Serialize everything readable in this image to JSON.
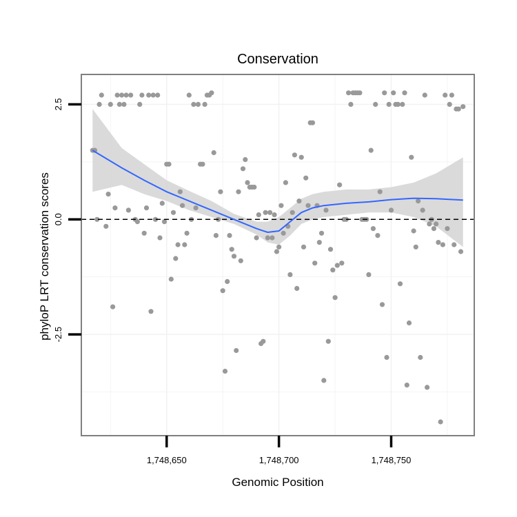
{
  "chart_data": {
    "type": "scatter",
    "title": "Conservation",
    "xlabel": "Genomic Position",
    "ylabel": "phyloP LRT conservation scores",
    "xlim": [
      1748612,
      1748787
    ],
    "ylim": [
      -4.7,
      3.15
    ],
    "x_ticks": [
      1748650,
      1748700,
      1748750
    ],
    "x_tick_labels": [
      "1,748,650",
      "1,748,700",
      "1,748,750"
    ],
    "y_ticks": [
      -2.5,
      0.0,
      2.5
    ],
    "y_tick_labels": [
      "-2.5",
      "0.0",
      "2.5"
    ],
    "grid": true,
    "reference_line": {
      "y": 0,
      "style": "dashed"
    },
    "colors": {
      "points": "#999999",
      "smooth": "#3366ff",
      "band": "#d3d3d3",
      "panel_border": "#7f7f7f",
      "grid": "#f2f2f2"
    },
    "points": [
      [
        1748617,
        1.5
      ],
      [
        1748618,
        1.5
      ],
      [
        1748619,
        0.0
      ],
      [
        1748620,
        2.5
      ],
      [
        1748621,
        2.7
      ],
      [
        1748623,
        -0.15
      ],
      [
        1748624,
        0.55
      ],
      [
        1748625,
        2.5
      ],
      [
        1748626,
        -1.9
      ],
      [
        1748627,
        0.25
      ],
      [
        1748628,
        2.7
      ],
      [
        1748629,
        2.5
      ],
      [
        1748630,
        2.7
      ],
      [
        1748631,
        2.5
      ],
      [
        1748632,
        2.7
      ],
      [
        1748633,
        0.2
      ],
      [
        1748634,
        2.7
      ],
      [
        1748636,
        0.0
      ],
      [
        1748637,
        -0.05
      ],
      [
        1748638,
        2.5
      ],
      [
        1748639,
        2.7
      ],
      [
        1748640,
        -0.3
      ],
      [
        1748641,
        0.25
      ],
      [
        1748642,
        2.7
      ],
      [
        1748643,
        -2.0
      ],
      [
        1748644,
        2.7
      ],
      [
        1748645,
        0.0
      ],
      [
        1748646,
        2.7
      ],
      [
        1748647,
        -0.4
      ],
      [
        1748648,
        0.35
      ],
      [
        1748649,
        -0.05
      ],
      [
        1748650,
        1.2
      ],
      [
        1748651,
        1.2
      ],
      [
        1748652,
        -1.3
      ],
      [
        1748653,
        0.15
      ],
      [
        1748654,
        -0.85
      ],
      [
        1748655,
        -0.55
      ],
      [
        1748656,
        0.6
      ],
      [
        1748657,
        0.3
      ],
      [
        1748658,
        -0.55
      ],
      [
        1748659,
        -0.3
      ],
      [
        1748660,
        2.7
      ],
      [
        1748661,
        0.0
      ],
      [
        1748662,
        2.5
      ],
      [
        1748663,
        0.25
      ],
      [
        1748664,
        2.5
      ],
      [
        1748665,
        1.2
      ],
      [
        1748666,
        1.2
      ],
      [
        1748667,
        2.5
      ],
      [
        1748668,
        2.7
      ],
      [
        1748669,
        2.7
      ],
      [
        1748670,
        2.75
      ],
      [
        1748671,
        1.45
      ],
      [
        1748672,
        -0.35
      ],
      [
        1748673,
        0.0
      ],
      [
        1748674,
        0.6
      ],
      [
        1748675,
        -1.55
      ],
      [
        1748676,
        -3.3
      ],
      [
        1748677,
        -1.35
      ],
      [
        1748678,
        -0.35
      ],
      [
        1748679,
        -0.65
      ],
      [
        1748680,
        -0.8
      ],
      [
        1748681,
        -2.85
      ],
      [
        1748682,
        0.6
      ],
      [
        1748683,
        -0.9
      ],
      [
        1748684,
        1.1
      ],
      [
        1748685,
        1.3
      ],
      [
        1748686,
        0.8
      ],
      [
        1748687,
        0.7
      ],
      [
        1748688,
        0.7
      ],
      [
        1748689,
        0.7
      ],
      [
        1748690,
        -0.4
      ],
      [
        1748691,
        0.1
      ],
      [
        1748692,
        -2.7
      ],
      [
        1748693,
        -2.65
      ],
      [
        1748694,
        0.15
      ],
      [
        1748695,
        -0.4
      ],
      [
        1748696,
        0.15
      ],
      [
        1748697,
        -0.4
      ],
      [
        1748698,
        0.1
      ],
      [
        1748699,
        -0.7
      ],
      [
        1748700,
        -0.6
      ],
      [
        1748701,
        0.3
      ],
      [
        1748702,
        -0.3
      ],
      [
        1748703,
        0.8
      ],
      [
        1748704,
        -0.15
      ],
      [
        1748705,
        -1.2
      ],
      [
        1748706,
        0.15
      ],
      [
        1748707,
        1.4
      ],
      [
        1748708,
        -1.5
      ],
      [
        1748709,
        0.4
      ],
      [
        1748710,
        1.35
      ],
      [
        1748711,
        -0.6
      ],
      [
        1748712,
        0.9
      ],
      [
        1748713,
        0.3
      ],
      [
        1748714,
        2.1
      ],
      [
        1748715,
        2.1
      ],
      [
        1748716,
        -0.95
      ],
      [
        1748717,
        0.3
      ],
      [
        1748718,
        -0.5
      ],
      [
        1748719,
        -0.3
      ],
      [
        1748720,
        -3.5
      ],
      [
        1748721,
        0.2
      ],
      [
        1748722,
        -2.65
      ],
      [
        1748723,
        -0.65
      ],
      [
        1748724,
        -1.1
      ],
      [
        1748725,
        -1.7
      ],
      [
        1748726,
        -1.0
      ],
      [
        1748727,
        0.75
      ],
      [
        1748728,
        -0.95
      ],
      [
        1748729,
        0.0
      ],
      [
        1748730,
        0.0
      ],
      [
        1748731,
        2.75
      ],
      [
        1748732,
        2.5
      ],
      [
        1748733,
        2.75
      ],
      [
        1748734,
        2.75
      ],
      [
        1748735,
        2.75
      ],
      [
        1748736,
        2.75
      ],
      [
        1748737,
        0.0
      ],
      [
        1748738,
        0.0
      ],
      [
        1748739,
        0.0
      ],
      [
        1748740,
        -1.2
      ],
      [
        1748741,
        1.5
      ],
      [
        1748742,
        -0.2
      ],
      [
        1748743,
        2.5
      ],
      [
        1748744,
        -0.35
      ],
      [
        1748745,
        0.6
      ],
      [
        1748746,
        -1.85
      ],
      [
        1748747,
        2.75
      ],
      [
        1748748,
        -3.0
      ],
      [
        1748749,
        2.5
      ],
      [
        1748750,
        0.2
      ],
      [
        1748751,
        2.75
      ],
      [
        1748752,
        2.5
      ],
      [
        1748753,
        2.5
      ],
      [
        1748754,
        -1.4
      ],
      [
        1748755,
        2.5
      ],
      [
        1748756,
        2.75
      ],
      [
        1748757,
        -3.6
      ],
      [
        1748758,
        -2.25
      ],
      [
        1748759,
        1.35
      ],
      [
        1748760,
        -0.25
      ],
      [
        1748761,
        -0.6
      ],
      [
        1748762,
        0.4
      ],
      [
        1748763,
        -3.0
      ],
      [
        1748764,
        0.2
      ],
      [
        1748765,
        2.7
      ],
      [
        1748766,
        -3.65
      ],
      [
        1748767,
        -0.1
      ],
      [
        1748768,
        0.0
      ],
      [
        1748769,
        -0.2
      ],
      [
        1748770,
        -0.1
      ],
      [
        1748771,
        -0.5
      ],
      [
        1748772,
        -4.4
      ],
      [
        1748773,
        -0.55
      ],
      [
        1748774,
        2.7
      ],
      [
        1748775,
        -0.2
      ],
      [
        1748776,
        2.5
      ],
      [
        1748777,
        2.7
      ],
      [
        1748778,
        -0.55
      ],
      [
        1748779,
        2.4
      ],
      [
        1748780,
        2.4
      ],
      [
        1748781,
        -0.7
      ],
      [
        1748782,
        2.45
      ]
    ],
    "smooth": {
      "x": [
        1748617,
        1748630,
        1748640,
        1748650,
        1748660,
        1748670,
        1748680,
        1748690,
        1748695,
        1748700,
        1748705,
        1748710,
        1748715,
        1748720,
        1748730,
        1748740,
        1748750,
        1748760,
        1748770,
        1748782
      ],
      "y": [
        1.5,
        1.12,
        0.85,
        0.6,
        0.4,
        0.2,
        0.0,
        -0.2,
        -0.28,
        -0.25,
        -0.05,
        0.15,
        0.25,
        0.3,
        0.35,
        0.38,
        0.43,
        0.46,
        0.45,
        0.42
      ],
      "lower": [
        0.6,
        0.75,
        0.55,
        0.4,
        0.2,
        0.05,
        -0.1,
        -0.33,
        -0.5,
        -0.55,
        -0.35,
        -0.1,
        0.0,
        0.05,
        0.1,
        0.15,
        0.15,
        0.05,
        -0.15,
        -0.6
      ],
      "upper": [
        2.4,
        1.55,
        1.2,
        0.85,
        0.62,
        0.4,
        0.12,
        -0.05,
        -0.05,
        0.05,
        0.25,
        0.45,
        0.55,
        0.6,
        0.65,
        0.65,
        0.7,
        0.8,
        1.0,
        1.35
      ]
    }
  }
}
